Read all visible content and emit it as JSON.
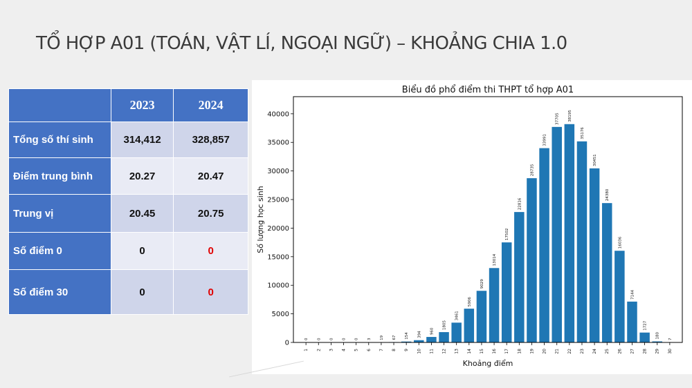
{
  "slide_title": "TỔ HỢP A01 (TOÁN, VẬT LÍ, NGOẠI NGỮ) – KHOẢNG CHIA 1.0",
  "table": {
    "header": [
      "",
      "2023",
      "2024"
    ],
    "rows": [
      {
        "label": "Tổng số thí sinh",
        "v2023": "314,412",
        "v2024": "328,857"
      },
      {
        "label": "Điểm trung bình",
        "v2023": "20.27",
        "v2024": "20.47"
      },
      {
        "label": "Trung vị",
        "v2023": "20.45",
        "v2024": "20.75"
      },
      {
        "label": "Số điểm 0",
        "v2023": "0",
        "v2024": "0"
      },
      {
        "label": "Số điểm 30",
        "v2023": "0",
        "v2024": "0"
      }
    ],
    "colors": {
      "header_bg": "#4472c4",
      "row_odd": "#cfd5ea",
      "row_even": "#e9ebf5",
      "highlight": "#e00000"
    }
  },
  "chart_data": {
    "type": "bar",
    "title": "Biểu đồ phổ điểm thi THPT tổ hợp A01",
    "xlabel": "Khoảng điểm",
    "ylabel": "Số lượng học sinh",
    "categories": [
      "1",
      "2",
      "3",
      "4",
      "5",
      "6",
      "7",
      "8",
      "9",
      "10",
      "11",
      "12",
      "13",
      "14",
      "15",
      "16",
      "17",
      "18",
      "19",
      "20",
      "21",
      "22",
      "23",
      "24",
      "25",
      "26",
      "27",
      "28",
      "29",
      "30"
    ],
    "values": [
      0,
      0,
      0,
      0,
      0,
      3,
      19,
      67,
      154,
      394,
      960,
      1805,
      3461,
      5906,
      9029,
      13014,
      17502,
      22816,
      28735,
      33991,
      37705,
      38195,
      35176,
      30451,
      24380,
      16036,
      7144,
      1727,
      180,
      7
    ],
    "ylim": [
      0,
      43000
    ],
    "yticks": [
      0,
      5000,
      10000,
      15000,
      20000,
      25000,
      30000,
      35000,
      40000
    ],
    "grid": false,
    "bar_color": "#1f77b4"
  }
}
